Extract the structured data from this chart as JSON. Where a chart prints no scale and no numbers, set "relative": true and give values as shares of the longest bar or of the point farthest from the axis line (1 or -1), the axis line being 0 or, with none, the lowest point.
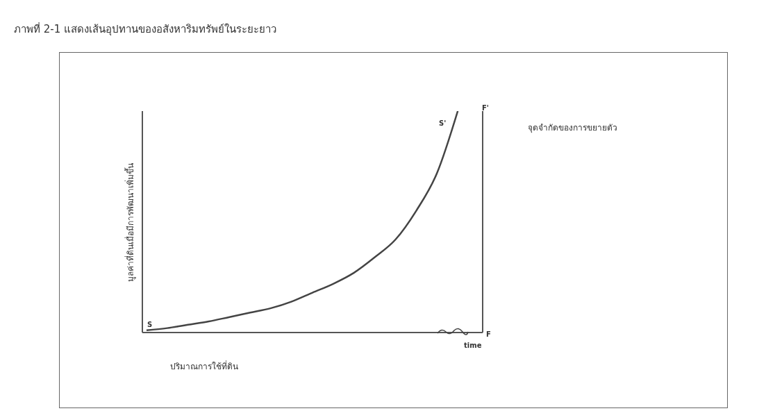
{
  "chart_data": {
    "type": "line",
    "title": "ภาพที่ 2-1 แสดงเส้นอุปทานของอสังหาริมทรัพย์ในระยะยาว",
    "xlabel": "ปริมาณการใช้ที่ดิน",
    "ylabel": "มูลค่าที่ดินเมื่อมีการพัฒนาเพิ่มขึ้น",
    "relative": true,
    "categories": [
      null,
      null,
      null,
      null,
      null,
      null,
      null,
      null,
      null,
      null,
      null,
      null,
      null,
      null,
      null,
      null,
      null
    ],
    "series": [
      {
        "color": "#444444",
        "values": [
          0.01,
          0.02,
          0.035,
          0.05,
          0.07,
          0.09,
          0.11,
          0.14,
          0.18,
          0.22,
          0.27,
          0.34,
          0.42,
          0.55,
          0.72,
          1.0,
          null
        ]
      }
    ],
    "annotations": [
      "S",
      "S'",
      "F'",
      "F",
      "time",
      "จุดจำกัดของการขยายตัว"
    ],
    "marker": "none",
    "grid": false,
    "legend": false
  }
}
